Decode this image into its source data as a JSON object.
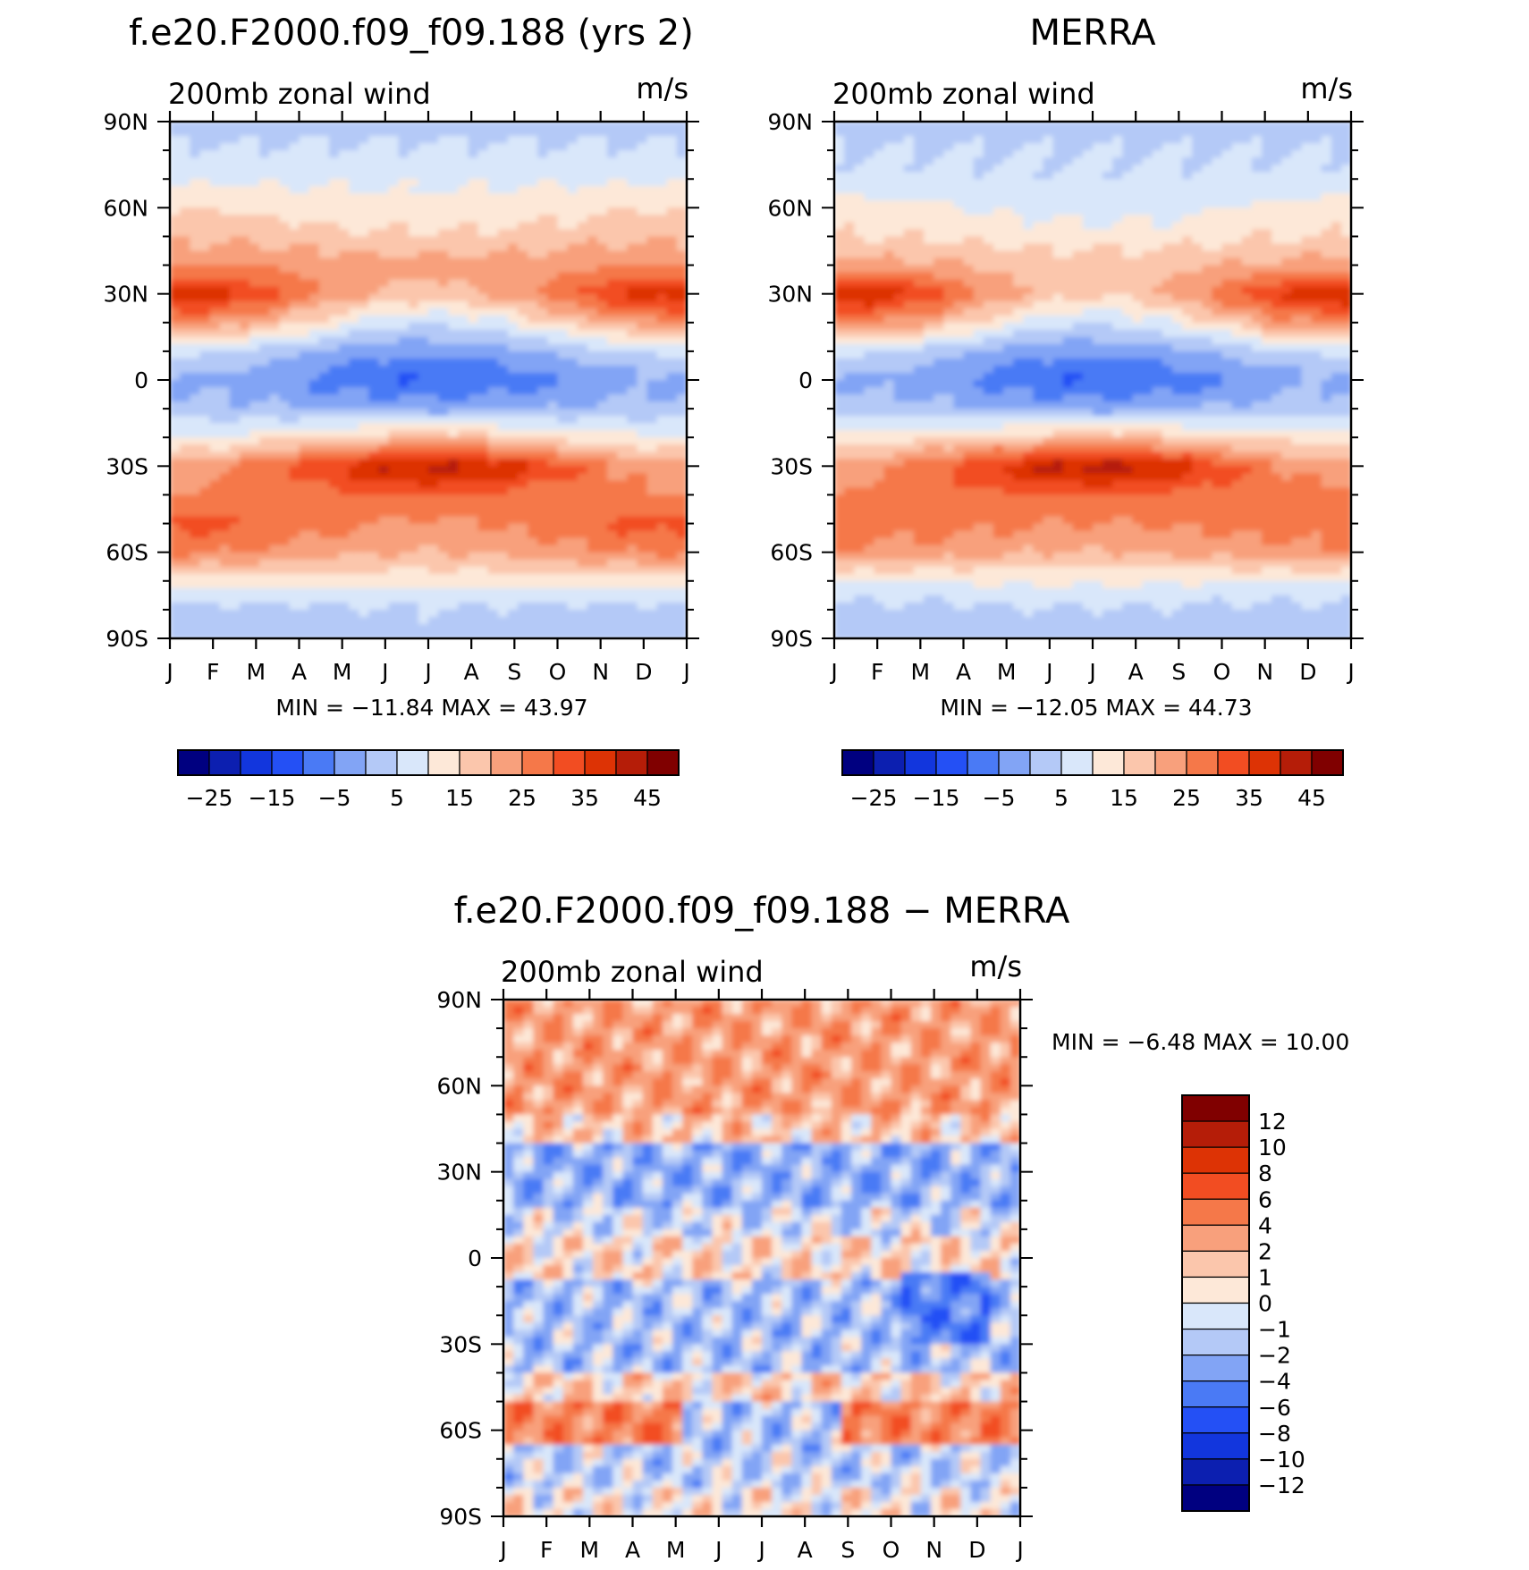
{
  "panels": [
    {
      "id": "model",
      "title": "f.e20.F2000.f09_f09.188 (yrs 2)",
      "subtitle": "200mb zonal wind",
      "units": "m/s",
      "stats": "MIN = −11.84  MAX =   43.97"
    },
    {
      "id": "obs",
      "title": "MERRA",
      "subtitle": "200mb zonal wind",
      "units": "m/s",
      "stats": "MIN = −12.05  MAX =   44.73"
    },
    {
      "id": "diff",
      "title": "f.e20.F2000.f09_f09.188 − MERRA",
      "subtitle": "200mb zonal wind",
      "units": "m/s",
      "stats": "MIN =   −6.48  MAX =   10.00"
    }
  ],
  "chart_data": [
    {
      "type": "heatmap",
      "title": "f.e20.F2000.f09_f09.188 (yrs 2)",
      "subtitle": "200mb zonal wind",
      "units": "m/s",
      "x_ticks": [
        "J",
        "F",
        "M",
        "A",
        "M",
        "J",
        "J",
        "A",
        "S",
        "O",
        "N",
        "D",
        "J"
      ],
      "y_ticks": [
        "90N",
        "60N",
        "30N",
        "0",
        "30S",
        "60S",
        "90S"
      ],
      "y_values": [
        90,
        60,
        30,
        0,
        -30,
        -60,
        -90
      ],
      "min": -11.84,
      "max": 43.97,
      "colorbar_labels": [
        "−25",
        "−15",
        "−5",
        "5",
        "15",
        "25",
        "35",
        "45"
      ],
      "colorbar_colors": [
        "#000080",
        "#0c1fb0",
        "#1236dd",
        "#2450f5",
        "#4a7af5",
        "#82a4f5",
        "#b4c9f7",
        "#d9e7fa",
        "#fde8d8",
        "#fbc6ac",
        "#f8a07c",
        "#f57849",
        "#f24d22",
        "#dd3305",
        "#b51d08",
        "#800000"
      ],
      "lat_profile": {
        "lat": [
          90,
          80,
          70,
          60,
          50,
          40,
          30,
          20,
          10,
          0,
          -10,
          -20,
          -30,
          -40,
          -50,
          -60,
          -70,
          -80,
          -90
        ],
        "jan": [
          2,
          6,
          9,
          15,
          19,
          25,
          38,
          25,
          6,
          -1,
          2,
          10,
          22,
          25,
          32,
          26,
          12,
          3,
          2
        ],
        "jul": [
          3,
          6,
          9,
          11,
          16,
          22,
          18,
          6,
          -4,
          -10,
          -2,
          18,
          42,
          30,
          24,
          20,
          12,
          4,
          3
        ]
      }
    },
    {
      "type": "heatmap",
      "title": "MERRA",
      "subtitle": "200mb zonal wind",
      "units": "m/s",
      "x_ticks": [
        "J",
        "F",
        "M",
        "A",
        "M",
        "J",
        "J",
        "A",
        "S",
        "O",
        "N",
        "D",
        "J"
      ],
      "y_ticks": [
        "90N",
        "60N",
        "30N",
        "0",
        "30S",
        "60S",
        "90S"
      ],
      "y_values": [
        90,
        60,
        30,
        0,
        -30,
        -60,
        -90
      ],
      "min": -12.05,
      "max": 44.73,
      "colorbar_labels": [
        "−25",
        "−15",
        "−5",
        "5",
        "15",
        "25",
        "35",
        "45"
      ],
      "colorbar_colors": [
        "#000080",
        "#0c1fb0",
        "#1236dd",
        "#2450f5",
        "#4a7af5",
        "#82a4f5",
        "#b4c9f7",
        "#d9e7fa",
        "#fde8d8",
        "#fbc6ac",
        "#f8a07c",
        "#f57849",
        "#f24d22",
        "#dd3305",
        "#b51d08",
        "#800000"
      ],
      "lat_profile": {
        "lat": [
          90,
          80,
          70,
          60,
          50,
          40,
          30,
          20,
          10,
          0,
          -10,
          -20,
          -30,
          -40,
          -50,
          -60,
          -70,
          -80,
          -90
        ],
        "jan": [
          3,
          5,
          7,
          12,
          15,
          22,
          40,
          26,
          6,
          -1,
          3,
          12,
          22,
          26,
          28,
          24,
          10,
          3,
          2
        ],
        "jul": [
          3,
          5,
          6,
          8,
          12,
          18,
          16,
          6,
          -4,
          -10,
          -2,
          18,
          43,
          30,
          25,
          20,
          11,
          4,
          2
        ]
      }
    },
    {
      "type": "heatmap",
      "title": "f.e20.F2000.f09_f09.188 − MERRA",
      "subtitle": "200mb zonal wind",
      "units": "m/s",
      "x_ticks": [
        "J",
        "F",
        "M",
        "A",
        "M",
        "J",
        "J",
        "A",
        "S",
        "O",
        "N",
        "D",
        "J"
      ],
      "y_ticks": [
        "90N",
        "60N",
        "30N",
        "0",
        "30S",
        "60S",
        "90S"
      ],
      "y_values": [
        90,
        60,
        30,
        0,
        -30,
        -60,
        -90
      ],
      "min": -6.48,
      "max": 10.0,
      "colorbar_labels": [
        "12",
        "10",
        "8",
        "6",
        "4",
        "2",
        "1",
        "0",
        "−1",
        "−2",
        "−4",
        "−6",
        "−8",
        "−10",
        "−12"
      ],
      "colorbar_colors": [
        "#800000",
        "#b51d08",
        "#dd3305",
        "#f24d22",
        "#f57849",
        "#f8a07c",
        "#fbc6ac",
        "#fde8d8",
        "#d9e7fa",
        "#b4c9f7",
        "#82a4f5",
        "#4a7af5",
        "#2450f5",
        "#1236dd",
        "#0c1fb0",
        "#000080"
      ]
    }
  ]
}
